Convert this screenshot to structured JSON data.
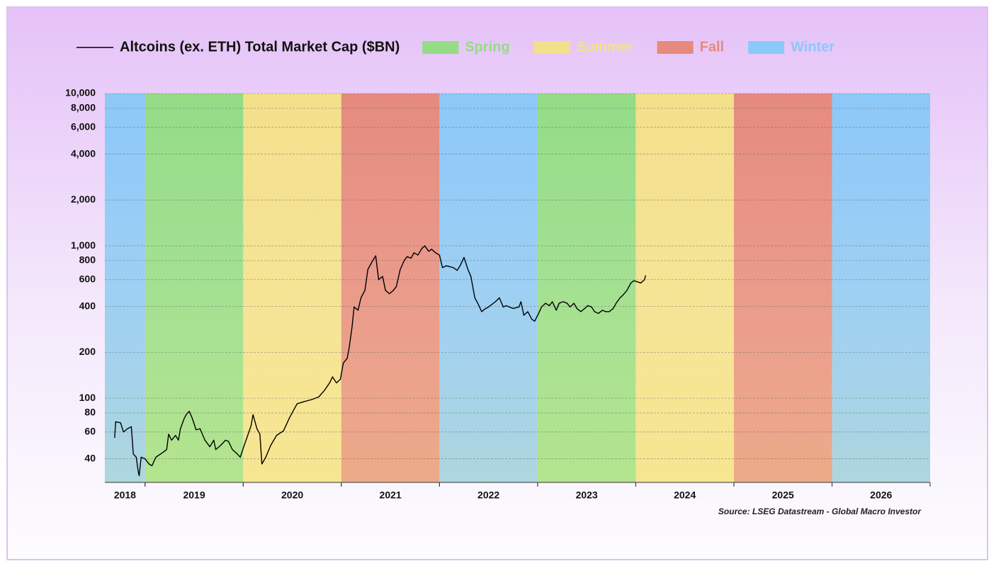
{
  "chart_data": {
    "type": "line",
    "log_y": true,
    "grid": true,
    "legend": "top",
    "source": "Source: LSEG Datastream - Global Macro Investor",
    "xlim": [
      2018.59,
      2027
    ],
    "ylim": [
      28,
      10000
    ],
    "yticks": [
      40,
      60,
      80,
      100,
      200,
      400,
      600,
      800,
      {
        "value": 1000,
        "label": "1,000"
      },
      {
        "value": 2000,
        "label": "2,000"
      },
      {
        "value": 4000,
        "label": "4,000"
      },
      {
        "value": 6000,
        "label": "6,000"
      },
      {
        "value": 8000,
        "label": "8,000"
      },
      {
        "value": 10000,
        "label": "10,000"
      }
    ],
    "seasons": [
      {
        "name": "Spring",
        "color": "#94dc86",
        "bands": [
          {
            "label": "2019",
            "start": 2019,
            "end": 2020
          },
          {
            "label": "2023",
            "start": 2023,
            "end": 2024
          }
        ]
      },
      {
        "name": "Summer",
        "color": "#f3e08a",
        "bands": [
          {
            "label": "2020",
            "start": 2020,
            "end": 2021
          },
          {
            "label": "2024",
            "start": 2024,
            "end": 2025
          }
        ]
      },
      {
        "name": "Fall",
        "color": "#e68a7e",
        "bands": [
          {
            "label": "2021",
            "start": 2021,
            "end": 2022
          },
          {
            "label": "2025",
            "start": 2025,
            "end": 2026
          }
        ]
      },
      {
        "name": "Winter",
        "color": "#8cc8f8",
        "bands": [
          {
            "label": "2018",
            "start": 2018,
            "end": 2019
          },
          {
            "label": "2022",
            "start": 2022,
            "end": 2023
          },
          {
            "label": "2026",
            "start": 2026,
            "end": 2027
          }
        ]
      }
    ],
    "series": [
      {
        "name": "Altcoins (ex. ETH) Total Market Cap ($BN)",
        "color": "#000000",
        "x": [
          2018.69,
          2018.7,
          2018.75,
          2018.78,
          2018.82,
          2018.86,
          2018.88,
          2018.91,
          2018.93,
          2018.94,
          2018.96,
          2019.0,
          2019.04,
          2019.07,
          2019.11,
          2019.18,
          2019.22,
          2019.24,
          2019.27,
          2019.31,
          2019.34,
          2019.36,
          2019.4,
          2019.42,
          2019.45,
          2019.48,
          2019.52,
          2019.56,
          2019.61,
          2019.66,
          2019.7,
          2019.72,
          2019.77,
          2019.82,
          2019.85,
          2019.89,
          2019.94,
          2019.97,
          2020.01,
          2020.05,
          2020.08,
          2020.1,
          2020.14,
          2020.17,
          2020.19,
          2020.23,
          2020.28,
          2020.34,
          2020.41,
          2020.47,
          2020.52,
          2020.55,
          2020.62,
          2020.7,
          2020.77,
          2020.83,
          2020.88,
          2020.91,
          2020.95,
          2020.99,
          2021.02,
          2021.06,
          2021.08,
          2021.11,
          2021.13,
          2021.17,
          2021.2,
          2021.24,
          2021.27,
          2021.31,
          2021.35,
          2021.38,
          2021.42,
          2021.45,
          2021.49,
          2021.53,
          2021.56,
          2021.6,
          2021.64,
          2021.67,
          2021.71,
          2021.74,
          2021.78,
          2021.82,
          2021.85,
          2021.89,
          2021.92,
          2021.96,
          2022.0,
          2022.03,
          2022.07,
          2022.14,
          2022.18,
          2022.21,
          2022.25,
          2022.29,
          2022.32,
          2022.36,
          2022.39,
          2022.43,
          2022.47,
          2022.5,
          2022.57,
          2022.61,
          2022.65,
          2022.68,
          2022.75,
          2022.81,
          2022.83,
          2022.86,
          2022.9,
          2022.94,
          2022.97,
          2023.01,
          2023.04,
          2023.08,
          2023.12,
          2023.15,
          2023.19,
          2023.22,
          2023.26,
          2023.3,
          2023.33,
          2023.37,
          2023.4,
          2023.44,
          2023.48,
          2023.51,
          2023.55,
          2023.58,
          2023.62,
          2023.66,
          2023.69,
          2023.73,
          2023.77,
          2023.8,
          2023.84,
          2023.87,
          2023.91,
          2023.95,
          2023.98,
          2024.02,
          2024.05,
          2024.09,
          2024.1
        ],
        "values": [
          55,
          70,
          69,
          60,
          63,
          65,
          43,
          41,
          33,
          31,
          41,
          40,
          37,
          36,
          41,
          44,
          46,
          58,
          53,
          57,
          53,
          63,
          74,
          78,
          82,
          74,
          62,
          63,
          53,
          48,
          53,
          46,
          49,
          53,
          52,
          46,
          43,
          41,
          49,
          58,
          66,
          78,
          63,
          58,
          37,
          41,
          49,
          57,
          61,
          74,
          85,
          92,
          95,
          98,
          102,
          113,
          126,
          138,
          126,
          133,
          170,
          183,
          215,
          297,
          397,
          378,
          456,
          510,
          700,
          780,
          860,
          600,
          630,
          510,
          485,
          510,
          540,
          700,
          800,
          850,
          830,
          900,
          870,
          960,
          1000,
          920,
          950,
          900,
          870,
          720,
          740,
          720,
          690,
          740,
          840,
          700,
          630,
          456,
          420,
          370,
          388,
          397,
          430,
          456,
          397,
          405,
          388,
          397,
          430,
          350,
          370,
          330,
          320,
          360,
          397,
          420,
          405,
          430,
          378,
          420,
          430,
          420,
          397,
          420,
          388,
          370,
          388,
          405,
          397,
          370,
          360,
          378,
          370,
          370,
          388,
          420,
          456,
          475,
          510,
          570,
          590,
          580,
          570,
          600,
          640
        ]
      }
    ]
  }
}
